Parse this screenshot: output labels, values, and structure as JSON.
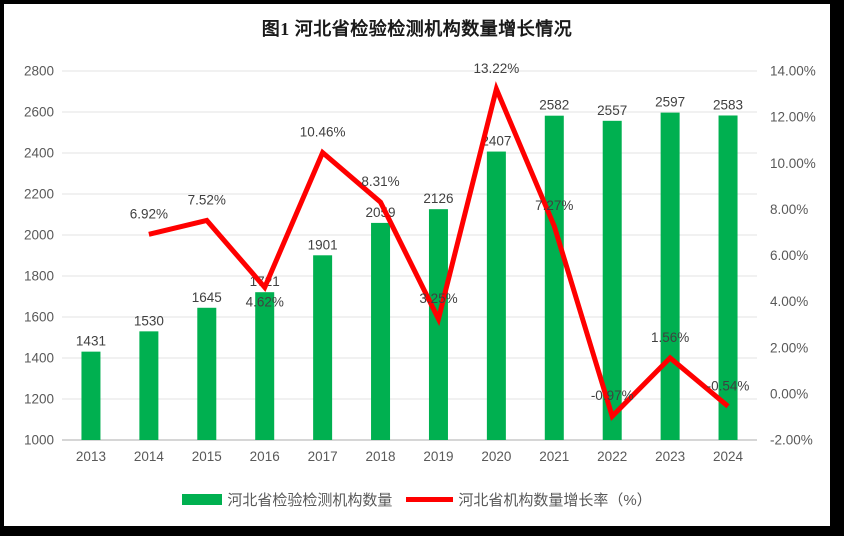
{
  "frame": {
    "border_color": "#000000",
    "background": "#FFFFFF"
  },
  "chart_data": {
    "type": "bar",
    "subtype": "bar-line-combo",
    "title": "图1  河北省检验检测机构数量增长情况",
    "categories": [
      "2013",
      "2014",
      "2015",
      "2016",
      "2017",
      "2018",
      "2019",
      "2020",
      "2021",
      "2022",
      "2023",
      "2024"
    ],
    "series": [
      {
        "name": "河北省检验检测机构数量",
        "type": "bar",
        "axis": "left",
        "color": "#00B050",
        "values": [
          1431,
          1530,
          1645,
          1721,
          1901,
          2059,
          2126,
          2407,
          2582,
          2557,
          2597,
          2583
        ],
        "point_labels": [
          "1431",
          "1530",
          "1645",
          "1721",
          "1901",
          "2059",
          "2126",
          "2407",
          "2582",
          "2557",
          "2597",
          "2583"
        ]
      },
      {
        "name": "河北省机构数量增长率（%）",
        "type": "line",
        "axis": "right",
        "color": "#FF0000",
        "values": [
          null,
          6.92,
          7.52,
          4.62,
          10.46,
          8.31,
          3.25,
          13.22,
          7.27,
          -0.97,
          1.56,
          -0.54
        ],
        "point_labels": [
          "",
          "6.92%",
          "7.52%",
          "4.62%",
          "10.46%",
          "8.31%",
          "3.25%",
          "13.22%",
          "7.27%",
          "-0.97%",
          "1.56%",
          "-0.54%"
        ]
      }
    ],
    "left_axis": {
      "min": 1000,
      "max": 2800,
      "step": 200,
      "tick_labels": [
        "1000",
        "1200",
        "1400",
        "1600",
        "1800",
        "2000",
        "2200",
        "2400",
        "2600",
        "2800"
      ]
    },
    "right_axis": {
      "min": -2,
      "max": 14,
      "step": 2,
      "tick_labels": [
        "-2.00%",
        "0.00%",
        "2.00%",
        "4.00%",
        "6.00%",
        "8.00%",
        "10.00%",
        "12.00%",
        "14.00%"
      ]
    },
    "grid": true,
    "legend_position": "bottom",
    "colors": {
      "grid": "#E3E3E3",
      "axis_line": "#C9C9C9",
      "tick_text": "#595959",
      "data_label_text": "#404040",
      "title_text": "#1A1A1A"
    }
  }
}
